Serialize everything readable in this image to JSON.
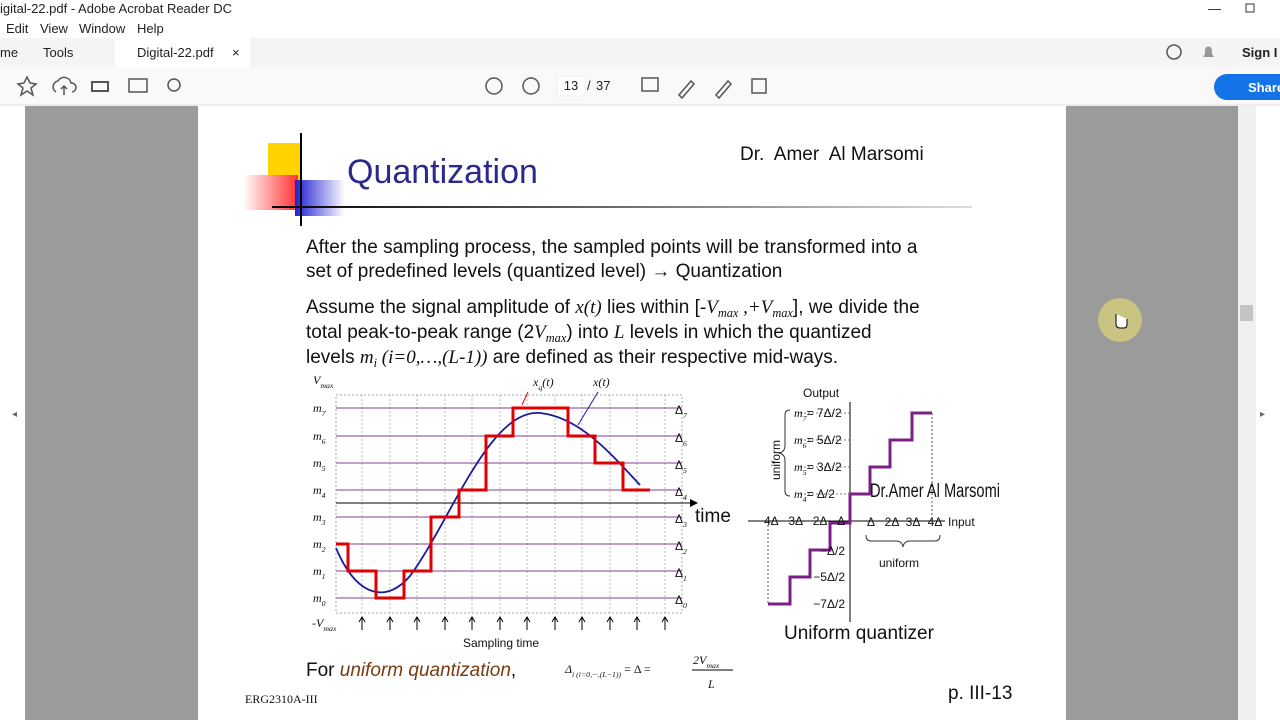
{
  "window": {
    "title": "igital-22.pdf - Adobe Acrobat Reader DC",
    "menu": [
      "Edit",
      "View",
      "Window",
      "Help"
    ]
  },
  "tabs": {
    "home": "me",
    "tools": "Tools",
    "document": "Digital-22.pdf"
  },
  "account": {
    "sign_in": "Sign I",
    "share": "Share"
  },
  "navigation": {
    "current_page": "13",
    "separator": "/",
    "total_pages": "37"
  },
  "slide": {
    "title": "Quantization",
    "author": "Dr.  Amer  Al Marsomi",
    "paragraph_1": [
      "After the sampling process, the sampled points will be transformed into a",
      "set of predefined levels (quantized level) → Quantization"
    ],
    "paragraph_2": [
      [
        {
          "text": "Assume the signal amplitude of "
        },
        {
          "text": "x(t)",
          "style": "math"
        },
        {
          "text": " lies within ["
        },
        {
          "text": "-V",
          "style": "math"
        },
        {
          "text": "max",
          "style": "sub"
        },
        {
          "text": " ,+V",
          "style": "math"
        },
        {
          "text": "max",
          "style": "sub"
        },
        {
          "text": "], we divide the"
        }
      ],
      [
        {
          "text": "total peak-to-peak range (2"
        },
        {
          "text": "V",
          "style": "math"
        },
        {
          "text": "max",
          "style": "sub"
        },
        {
          "text": ") into "
        },
        {
          "text": "L",
          "style": "math"
        },
        {
          "text": " levels in which the quantized"
        }
      ],
      [
        {
          "text": "levels "
        },
        {
          "text": "m",
          "style": "math"
        },
        {
          "text": "i",
          "style": "sub"
        },
        {
          "text": " (i=0,…,(L-1))",
          "style": "math"
        },
        {
          "text": " are defined as their respective mid-ways."
        }
      ]
    ],
    "left_figure": {
      "v_max": [
        {
          "text": "V",
          "style": "math"
        },
        {
          "text": "max",
          "style": "sub"
        }
      ],
      "v_min": [
        {
          "text": "-V",
          "style": "math"
        },
        {
          "text": "max",
          "style": "sub"
        }
      ],
      "levels": [
        [
          {
            "text": "m",
            "style": "math"
          },
          {
            "text": "7",
            "style": "sub"
          }
        ],
        [
          {
            "text": "m",
            "style": "math"
          },
          {
            "text": "6",
            "style": "sub"
          }
        ],
        [
          {
            "text": "m",
            "style": "math"
          },
          {
            "text": "5",
            "style": "sub"
          }
        ],
        [
          {
            "text": "m",
            "style": "math"
          },
          {
            "text": "4",
            "style": "sub"
          }
        ],
        [
          {
            "text": "m",
            "style": "math"
          },
          {
            "text": "3",
            "style": "sub"
          }
        ],
        [
          {
            "text": "m",
            "style": "math"
          },
          {
            "text": "2",
            "style": "sub"
          }
        ],
        [
          {
            "text": "m",
            "style": "math"
          },
          {
            "text": "1",
            "style": "sub"
          }
        ],
        [
          {
            "text": "m",
            "style": "math"
          },
          {
            "text": "0",
            "style": "sub"
          }
        ]
      ],
      "deltas": [
        [
          {
            "text": "Δ"
          },
          {
            "text": "7",
            "style": "sub"
          }
        ],
        [
          {
            "text": "Δ"
          },
          {
            "text": "6",
            "style": "sub"
          }
        ],
        [
          {
            "text": "Δ"
          },
          {
            "text": "5",
            "style": "sub"
          }
        ],
        [
          {
            "text": "Δ"
          },
          {
            "text": "4",
            "style": "sub"
          }
        ],
        [
          {
            "text": "Δ"
          },
          {
            "text": "3",
            "style": "sub"
          }
        ],
        [
          {
            "text": "Δ"
          },
          {
            "text": "2",
            "style": "sub"
          }
        ],
        [
          {
            "text": "Δ"
          },
          {
            "text": "1",
            "style": "sub"
          }
        ],
        [
          {
            "text": "Δ"
          },
          {
            "text": "0",
            "style": "sub"
          }
        ]
      ],
      "quantized_label": [
        {
          "text": "x",
          "style": "math"
        },
        {
          "text": "q",
          "style": "sub"
        },
        {
          "text": "(t)",
          "style": "math"
        }
      ],
      "signal_label": [
        {
          "text": "x(t)",
          "style": "math"
        }
      ],
      "time_label": "time",
      "sampling_label": "Sampling time"
    },
    "right_figure": {
      "output_label": "Output",
      "input_label": "Input",
      "uniform_vertical": "uniform",
      "uniform_horizontal": "uniform",
      "caption": "Uniform quantizer",
      "levels": [
        [
          {
            "text": "m",
            "style": "math"
          },
          {
            "text": "7",
            "style": "sub"
          },
          {
            "text": "= 7Δ/2"
          }
        ],
        [
          {
            "text": "m",
            "style": "math"
          },
          {
            "text": "6",
            "style": "sub"
          },
          {
            "text": "= 5Δ/2"
          }
        ],
        [
          {
            "text": "m",
            "style": "math"
          },
          {
            "text": "5",
            "style": "sub"
          },
          {
            "text": "= 3Δ/2"
          }
        ],
        [
          {
            "text": "m",
            "style": "math"
          },
          {
            "text": "4",
            "style": "sub"
          },
          {
            "text": "= Δ/2"
          }
        ]
      ],
      "negative_levels": [
        "−Δ/2",
        "−5Δ/2",
        "−7Δ/2"
      ],
      "negative_inputs": "−4Δ −3Δ −2Δ −Δ",
      "positive_inputs": [
        "Δ",
        "2Δ",
        "3Δ",
        "4Δ"
      ],
      "overlay_text": "Dr.Amer Al Marsomi"
    },
    "formula_intro": "For ",
    "formula_emphasis": "uniform quantization",
    "formula_comma": ",",
    "formula_left": [
      {
        "text": "Δ",
        "style": "math"
      },
      {
        "text": "i (i=0,···,(L−1))",
        "style": "sub"
      },
      {
        "text": " = Δ = "
      }
    ],
    "formula_numerator": [
      {
        "text": "2V",
        "style": "math"
      },
      {
        "text": "max",
        "style": "sub"
      }
    ],
    "formula_denominator": "L",
    "footer_course": "ERG2310A-III",
    "footer_page": "p. III-13"
  }
}
